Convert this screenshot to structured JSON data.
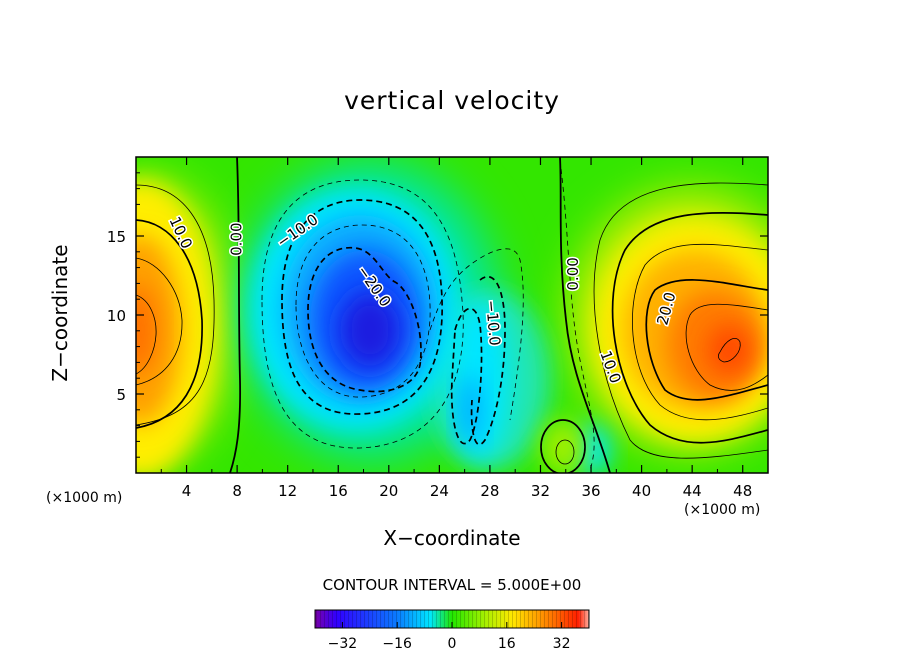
{
  "chart_data": {
    "type": "heatmap",
    "title": "vertical velocity",
    "xlabel": "X−coordinate",
    "ylabel": "Z−coordinate",
    "x_unit_left": "(×1000 m)",
    "x_unit_right": "(×1000 m)",
    "xlim": [
      0,
      50
    ],
    "ylim": [
      0,
      20
    ],
    "x_ticks": [
      4,
      8,
      12,
      16,
      20,
      24,
      28,
      32,
      36,
      40,
      44,
      48
    ],
    "y_ticks": [
      5,
      10,
      15
    ],
    "contour_interval_text": "CONTOUR INTERVAL = 5.000E+00",
    "colorbar": {
      "range": [
        -40,
        40
      ],
      "ticks": [
        -32,
        -16,
        0,
        16,
        32
      ],
      "tick_labels": [
        "−32",
        "−16",
        "0",
        "16",
        "32"
      ]
    },
    "contour_labels": [
      {
        "text": "10.0",
        "x": 3.5,
        "z": 15.2,
        "angle": 65
      },
      {
        "text": "0.00",
        "x": 8.0,
        "z": 14.8,
        "angle": -90
      },
      {
        "text": "−10.0",
        "x": 12.8,
        "z": 15.3,
        "angle": -35
      },
      {
        "text": "−20.0",
        "x": 18.8,
        "z": 11.8,
        "angle": 55
      },
      {
        "text": "−10.0",
        "x": 28.2,
        "z": 9.5,
        "angle": 85
      },
      {
        "text": "0.00",
        "x": 34.6,
        "z": 12.6,
        "angle": -90
      },
      {
        "text": "20.0",
        "x": 42.0,
        "z": 10.4,
        "angle": -75
      },
      {
        "text": "10.0",
        "x": 37.5,
        "z": 6.7,
        "angle": 70
      }
    ],
    "features": [
      {
        "kind": "updraft",
        "x": 0.5,
        "z": 9.5,
        "w": 26
      },
      {
        "kind": "downdraft",
        "x": 17.5,
        "z": 10.0,
        "w": -30
      },
      {
        "kind": "downdraft",
        "x": 27.0,
        "z": 5.0,
        "w": -12
      },
      {
        "kind": "updraft",
        "x": 46.5,
        "z": 8.0,
        "w": 30
      },
      {
        "kind": "updraft",
        "x": 33.8,
        "z": 1.5,
        "w": 10
      }
    ]
  },
  "colors": {
    "background": "#ffffff",
    "field_zero": "#33e600",
    "positive_max": "#ff3b00",
    "negative_max": "#0a2cff"
  }
}
